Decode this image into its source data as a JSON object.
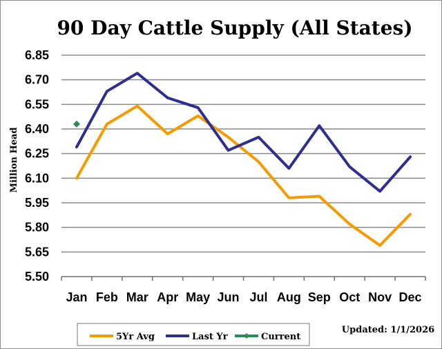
{
  "chart_data": {
    "type": "line",
    "title": "90 Day Cattle Supply (All States)",
    "ylabel": "Million Head",
    "xlabel": "",
    "categories": [
      "Jan",
      "Feb",
      "Mar",
      "Apr",
      "May",
      "Jun",
      "Jul",
      "Aug",
      "Sep",
      "Oct",
      "Nov",
      "Dec"
    ],
    "y_ticks": [
      "6.85",
      "6.70",
      "6.55",
      "6.40",
      "6.25",
      "6.10",
      "5.95",
      "5.80",
      "5.65",
      "5.50"
    ],
    "ylim": [
      5.5,
      6.85
    ],
    "grid": true,
    "legend_position": "bottom",
    "series": [
      {
        "name": "5Yr Avg",
        "color": "#f59b00",
        "values": [
          6.1,
          6.43,
          6.54,
          6.37,
          6.48,
          6.35,
          6.2,
          5.98,
          5.99,
          5.82,
          5.69,
          5.88
        ]
      },
      {
        "name": "Last Yr",
        "color": "#2e2e8f",
        "values": [
          6.29,
          6.63,
          6.74,
          6.59,
          6.53,
          6.27,
          6.35,
          6.16,
          6.42,
          6.17,
          6.02,
          6.23
        ]
      },
      {
        "name": "Current",
        "color": "#2e8b57",
        "marker": "diamond",
        "values": [
          6.43,
          null,
          null,
          null,
          null,
          null,
          null,
          null,
          null,
          null,
          null,
          null
        ]
      }
    ],
    "annotation": "Updated: 1/1/2026"
  }
}
